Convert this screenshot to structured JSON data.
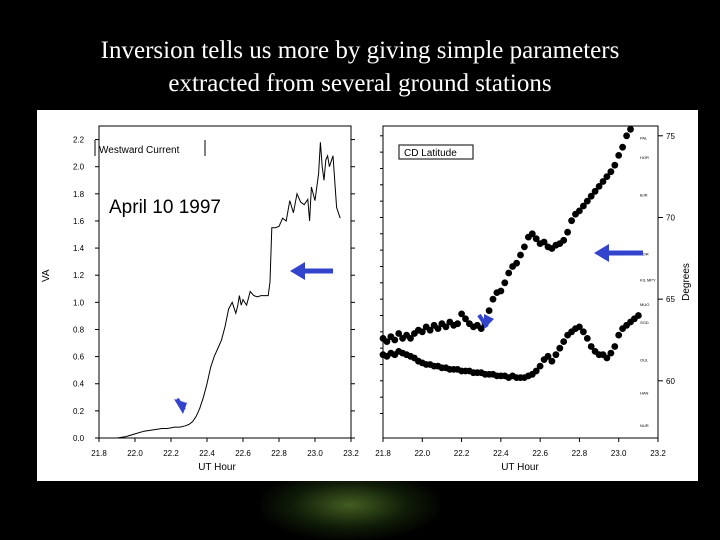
{
  "slide": {
    "title_line1": "Inversion tells us more by giving simple parameters",
    "title_line2": "extracted from several ground stations"
  },
  "colors": {
    "background": "#000000",
    "panel": "#ffffff",
    "plot_line": "#000000",
    "arrow": "#3344cc"
  },
  "chart_data": [
    {
      "type": "line",
      "legend_box": "Westward Current",
      "annotation": "April 10 1997",
      "xlabel": "UT Hour",
      "ylabel": "VA",
      "xlim": [
        21.8,
        23.2
      ],
      "ylim": [
        0.0,
        2.3
      ],
      "xticks": [
        "21.8",
        "22.0",
        "22.2",
        "22.4",
        "22.6",
        "22.8",
        "23.0",
        "23.2"
      ],
      "yticks": [
        "0.0",
        "0.2",
        "0.4",
        "0.6",
        "0.8",
        "1.0",
        "1.2",
        "1.4",
        "1.6",
        "1.8",
        "2.0",
        "2.2"
      ],
      "series": [
        {
          "x": [
            21.8,
            21.9,
            21.95,
            22.0,
            22.05,
            22.1,
            22.15,
            22.18,
            22.22,
            22.25,
            22.28,
            22.3,
            22.32,
            22.34,
            22.36,
            22.38,
            22.4,
            22.42,
            22.44,
            22.46,
            22.48,
            22.5,
            22.52,
            22.54,
            22.56,
            22.57,
            22.58,
            22.59,
            22.6,
            22.62,
            22.64,
            22.66,
            22.68,
            22.7,
            22.72,
            22.74,
            22.75,
            22.76,
            22.78,
            22.8,
            22.82,
            22.84,
            22.86,
            22.88,
            22.9,
            22.92,
            22.94,
            22.96,
            22.97,
            22.98,
            23.0,
            23.02,
            23.03,
            23.04,
            23.05,
            23.06,
            23.07,
            23.08,
            23.1,
            23.12,
            23.14
          ],
          "y": [
            0.0,
            0.0,
            0.01,
            0.03,
            0.05,
            0.06,
            0.07,
            0.07,
            0.08,
            0.08,
            0.09,
            0.1,
            0.12,
            0.16,
            0.22,
            0.3,
            0.4,
            0.52,
            0.6,
            0.66,
            0.72,
            0.82,
            0.95,
            1.0,
            0.92,
            0.97,
            1.05,
            0.98,
            1.02,
            0.98,
            1.08,
            1.05,
            1.04,
            1.05,
            1.05,
            1.05,
            1.15,
            1.55,
            1.55,
            1.56,
            1.62,
            1.6,
            1.75,
            1.66,
            1.8,
            1.74,
            1.72,
            1.76,
            1.6,
            1.85,
            1.75,
            1.95,
            2.18,
            2.0,
            1.9,
            2.05,
            2.08,
            2.0,
            2.08,
            1.7,
            1.62
          ]
        }
      ]
    },
    {
      "type": "scatter",
      "legend_box": "CD Latitude",
      "xlabel": "UT Hour",
      "ylabel": "Degrees",
      "xlim": [
        21.8,
        23.2
      ],
      "ylim": [
        56.5,
        75.6
      ],
      "xticks": [
        "21.8",
        "22.0",
        "22.2",
        "22.4",
        "22.6",
        "22.8",
        "23.0",
        "23.2"
      ],
      "yticks": [
        "60",
        "65",
        "70",
        "75"
      ],
      "station_labels": [
        "PAL",
        "HOR",
        "BJR",
        "SOR",
        "KIL MPY",
        "MUO",
        "SOD",
        "OUL",
        "HAN",
        "NUR"
      ],
      "series": [
        {
          "x": [
            21.8,
            21.82,
            21.84,
            21.86,
            21.88,
            21.9,
            21.92,
            21.94,
            21.96,
            21.98,
            22.0,
            22.02,
            22.04,
            22.06,
            22.08,
            22.1,
            22.12,
            22.14,
            22.16,
            22.18,
            22.2,
            22.22,
            22.24,
            22.26,
            22.28,
            22.3,
            22.32,
            22.34,
            22.36,
            22.38,
            22.4,
            22.42,
            22.44,
            22.46,
            22.48,
            22.5,
            22.52,
            22.54,
            22.56,
            22.58,
            22.6,
            22.62,
            22.64,
            22.66,
            22.68,
            22.7,
            22.72,
            22.74,
            22.76,
            22.78,
            22.8,
            22.82,
            22.84,
            22.86,
            22.88,
            22.9,
            22.92,
            22.94,
            22.96,
            22.98,
            23.0,
            23.02,
            23.04,
            23.06,
            23.08,
            23.1,
            23.12,
            23.14
          ],
          "y": [
            62.6,
            62.4,
            62.7,
            62.5,
            62.9,
            62.6,
            62.8,
            62.6,
            62.9,
            63.1,
            63.0,
            63.3,
            63.1,
            63.4,
            63.2,
            63.5,
            63.3,
            63.6,
            63.4,
            63.5,
            64.1,
            63.8,
            63.5,
            63.3,
            63.4,
            63.2,
            63.5,
            64.3,
            65.0,
            65.4,
            65.5,
            66.0,
            66.6,
            67.0,
            67.2,
            67.7,
            68.2,
            68.8,
            69.0,
            68.7,
            68.4,
            68.5,
            68.2,
            68.1,
            68.3,
            68.4,
            68.6,
            69.1,
            69.8,
            70.2,
            70.4,
            70.7,
            71.0,
            71.3,
            71.6,
            71.9,
            72.2,
            72.5,
            72.8,
            73.2,
            73.8,
            74.3,
            75.0,
            75.4,
            75.6,
            75.6,
            75.6,
            75.6
          ]
        },
        {
          "x": [
            21.8,
            21.82,
            21.84,
            21.86,
            21.88,
            21.9,
            21.92,
            21.94,
            21.96,
            21.98,
            22.0,
            22.02,
            22.04,
            22.06,
            22.08,
            22.1,
            22.12,
            22.14,
            22.16,
            22.18,
            22.2,
            22.22,
            22.24,
            22.26,
            22.28,
            22.3,
            22.32,
            22.34,
            22.36,
            22.38,
            22.4,
            22.42,
            22.44,
            22.46,
            22.48,
            22.5,
            22.52,
            22.54,
            22.56,
            22.58,
            22.6,
            22.62,
            22.64,
            22.66,
            22.68,
            22.7,
            22.72,
            22.74,
            22.76,
            22.78,
            22.8,
            22.82,
            22.84,
            22.86,
            22.88,
            22.9,
            22.92,
            22.94,
            22.96,
            22.98,
            23.0,
            23.02,
            23.04,
            23.06,
            23.08,
            23.1
          ],
          "y": [
            61.6,
            61.5,
            61.7,
            61.6,
            61.8,
            61.7,
            61.6,
            61.5,
            61.4,
            61.2,
            61.1,
            61.0,
            61.0,
            60.9,
            60.9,
            60.8,
            60.8,
            60.7,
            60.7,
            60.7,
            60.6,
            60.6,
            60.6,
            60.5,
            60.5,
            60.5,
            60.4,
            60.4,
            60.4,
            60.3,
            60.3,
            60.3,
            60.2,
            60.3,
            60.2,
            60.2,
            60.2,
            60.3,
            60.4,
            60.6,
            60.9,
            61.3,
            61.5,
            61.2,
            61.6,
            62.0,
            62.4,
            62.8,
            63.0,
            63.2,
            63.3,
            63.0,
            62.6,
            62.1,
            61.8,
            61.6,
            61.6,
            61.4,
            61.7,
            62.1,
            62.8,
            63.2,
            63.4,
            63.6,
            63.8,
            64.0
          ]
        }
      ]
    }
  ]
}
